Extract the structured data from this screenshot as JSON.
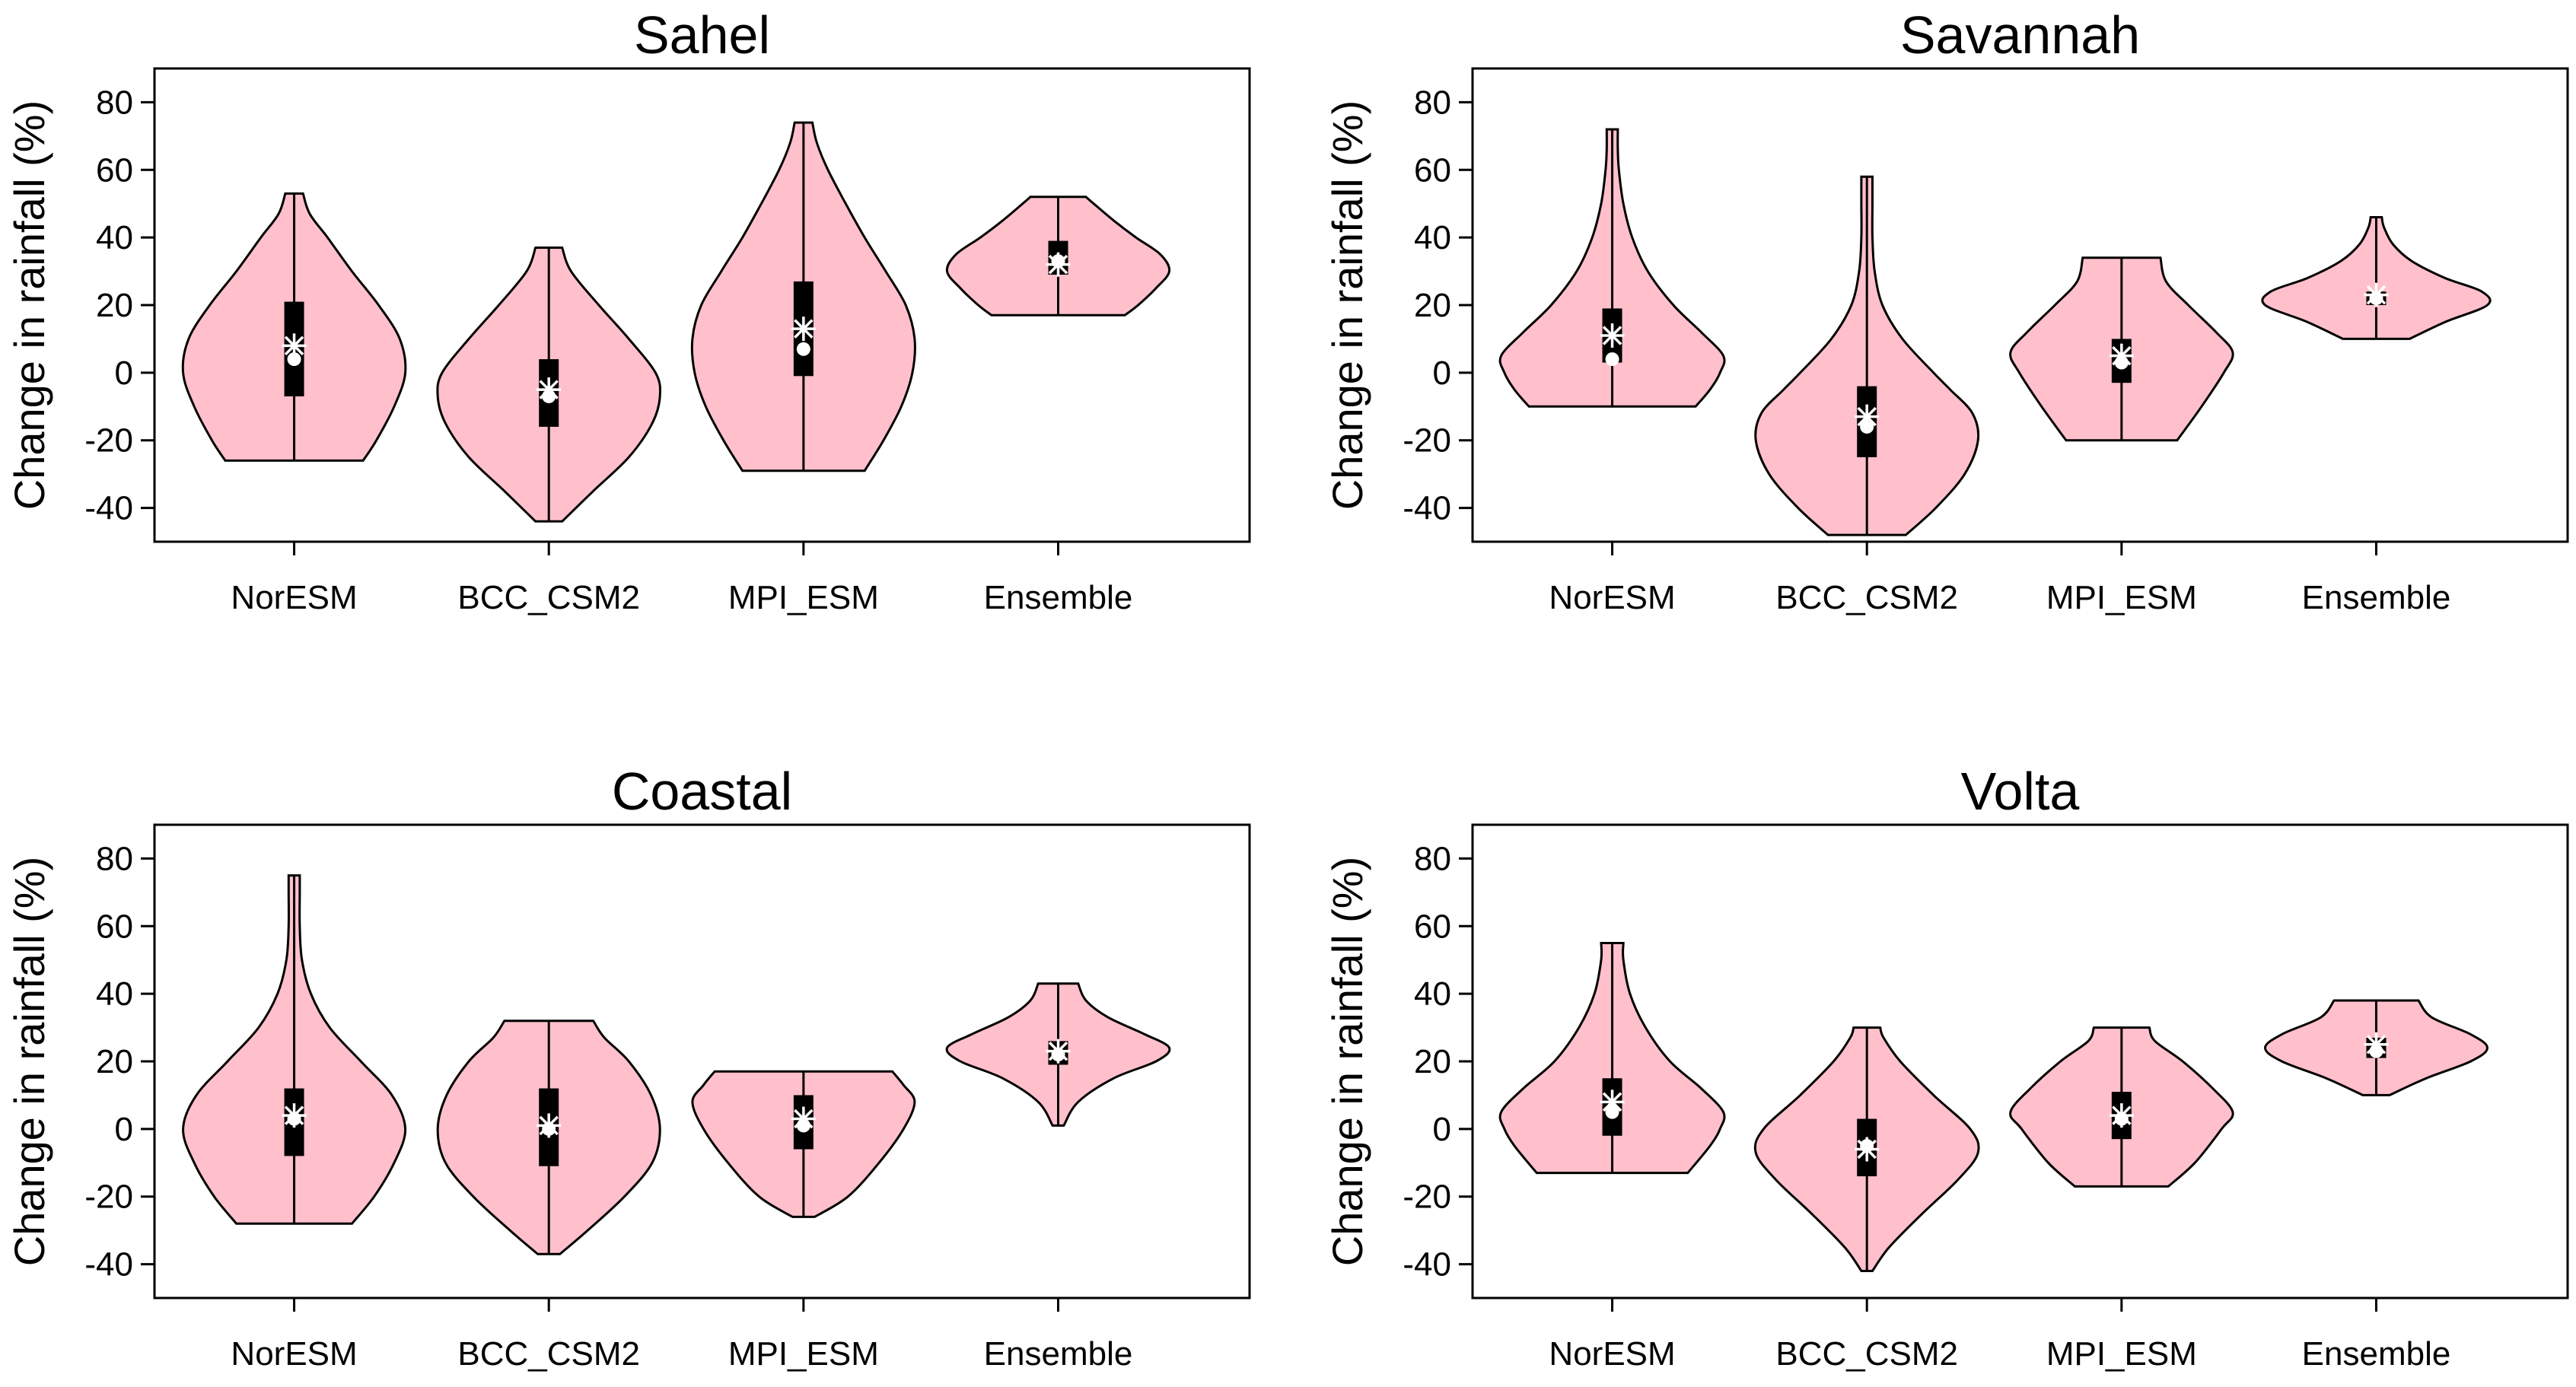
{
  "colors": {
    "violin_fill": "#FFC0CB",
    "outline": "#000000",
    "marker": "#FFFFFF"
  },
  "chart_data": [
    {
      "type": "violin",
      "title": "Sahel",
      "xlabel": "",
      "ylabel": "Change in rainfall (%)",
      "ylim": [
        -50,
        90
      ],
      "yticks": [
        -40,
        -20,
        0,
        20,
        40,
        60,
        80
      ],
      "categories": [
        "NorESM",
        "BCC_CSM2",
        "MPI_ESM",
        "Ensemble"
      ],
      "series": [
        {
          "name": "NorESM",
          "min": -26,
          "q1": -7,
          "median": 4,
          "mean": 8,
          "q3": 21,
          "max": 53,
          "density": [
            [
              -26,
              0.62
            ],
            [
              -20,
              0.74
            ],
            [
              -10,
              0.9
            ],
            [
              0,
              1.0
            ],
            [
              10,
              0.95
            ],
            [
              20,
              0.76
            ],
            [
              30,
              0.52
            ],
            [
              40,
              0.3
            ],
            [
              47,
              0.14
            ],
            [
              53,
              0.08
            ]
          ]
        },
        {
          "name": "BCC_CSM2",
          "min": -44,
          "q1": -16,
          "median": -7,
          "mean": -5,
          "q3": 4,
          "max": 37,
          "density": [
            [
              -44,
              0.12
            ],
            [
              -35,
              0.4
            ],
            [
              -25,
              0.72
            ],
            [
              -15,
              0.93
            ],
            [
              -7,
              1.0
            ],
            [
              0,
              0.96
            ],
            [
              10,
              0.72
            ],
            [
              20,
              0.45
            ],
            [
              30,
              0.2
            ],
            [
              37,
              0.12
            ]
          ]
        },
        {
          "name": "MPI_ESM",
          "min": -29,
          "q1": -1,
          "median": 7,
          "mean": 13,
          "q3": 27,
          "max": 74,
          "density": [
            [
              -29,
              0.55
            ],
            [
              -20,
              0.72
            ],
            [
              -10,
              0.88
            ],
            [
              0,
              0.98
            ],
            [
              10,
              1.0
            ],
            [
              20,
              0.92
            ],
            [
              30,
              0.74
            ],
            [
              40,
              0.55
            ],
            [
              50,
              0.38
            ],
            [
              60,
              0.22
            ],
            [
              68,
              0.12
            ],
            [
              74,
              0.08
            ]
          ]
        },
        {
          "name": "Ensemble",
          "min": 17,
          "q1": 29,
          "median": 33,
          "mean": 32,
          "q3": 39,
          "max": 52,
          "density": [
            [
              17,
              0.6
            ],
            [
              20,
              0.72
            ],
            [
              25,
              0.88
            ],
            [
              30,
              1.0
            ],
            [
              35,
              0.92
            ],
            [
              40,
              0.7
            ],
            [
              45,
              0.5
            ],
            [
              50,
              0.32
            ],
            [
              52,
              0.25
            ]
          ]
        }
      ]
    },
    {
      "type": "violin",
      "title": "Savannah",
      "xlabel": "",
      "ylabel": "Change in rainfall (%)",
      "ylim": [
        -50,
        90
      ],
      "yticks": [
        -40,
        -20,
        0,
        20,
        40,
        60,
        80
      ],
      "categories": [
        "NorESM",
        "BCC_CSM2",
        "MPI_ESM",
        "Ensemble"
      ],
      "series": [
        {
          "name": "NorESM",
          "min": -10,
          "q1": 3,
          "median": 4,
          "mean": 11,
          "q3": 19,
          "max": 72,
          "density": [
            [
              -10,
              0.75
            ],
            [
              -5,
              0.88
            ],
            [
              0,
              0.97
            ],
            [
              5,
              1.0
            ],
            [
              12,
              0.8
            ],
            [
              20,
              0.55
            ],
            [
              30,
              0.32
            ],
            [
              40,
              0.18
            ],
            [
              50,
              0.1
            ],
            [
              60,
              0.06
            ],
            [
              66,
              0.05
            ],
            [
              72,
              0.05
            ]
          ]
        },
        {
          "name": "BCC_CSM2",
          "min": -48,
          "q1": -25,
          "median": -16,
          "mean": -13,
          "q3": -4,
          "max": 58,
          "density": [
            [
              -48,
              0.35
            ],
            [
              -40,
              0.62
            ],
            [
              -30,
              0.88
            ],
            [
              -20,
              1.0
            ],
            [
              -12,
              0.95
            ],
            [
              -5,
              0.75
            ],
            [
              0,
              0.6
            ],
            [
              10,
              0.32
            ],
            [
              20,
              0.14
            ],
            [
              30,
              0.07
            ],
            [
              40,
              0.05
            ],
            [
              50,
              0.05
            ],
            [
              58,
              0.05
            ]
          ]
        },
        {
          "name": "MPI_ESM",
          "min": -20,
          "q1": -3,
          "median": 3,
          "mean": 5,
          "q3": 10,
          "max": 34,
          "density": [
            [
              -20,
              0.5
            ],
            [
              -10,
              0.72
            ],
            [
              0,
              0.92
            ],
            [
              6,
              1.0
            ],
            [
              12,
              0.85
            ],
            [
              20,
              0.6
            ],
            [
              27,
              0.4
            ],
            [
              34,
              0.35
            ]
          ]
        },
        {
          "name": "Ensemble",
          "min": 10,
          "q1": 20,
          "median": 22,
          "mean": 23,
          "q3": 24,
          "max": 46,
          "density": [
            [
              10,
              0.3
            ],
            [
              15,
              0.62
            ],
            [
              20,
              1.0
            ],
            [
              24,
              0.95
            ],
            [
              28,
              0.62
            ],
            [
              33,
              0.32
            ],
            [
              38,
              0.15
            ],
            [
              43,
              0.07
            ],
            [
              46,
              0.05
            ]
          ]
        }
      ]
    },
    {
      "type": "violin",
      "title": "Coastal",
      "xlabel": "",
      "ylabel": "Change in rainfall (%)",
      "ylim": [
        -50,
        90
      ],
      "yticks": [
        -40,
        -20,
        0,
        20,
        40,
        60,
        80
      ],
      "categories": [
        "NorESM",
        "BCC_CSM2",
        "MPI_ESM",
        "Ensemble"
      ],
      "series": [
        {
          "name": "NorESM",
          "min": -28,
          "q1": -8,
          "median": 3,
          "mean": 4,
          "q3": 12,
          "max": 75,
          "density": [
            [
              -28,
              0.52
            ],
            [
              -20,
              0.72
            ],
            [
              -10,
              0.9
            ],
            [
              0,
              1.0
            ],
            [
              10,
              0.88
            ],
            [
              20,
              0.6
            ],
            [
              30,
              0.32
            ],
            [
              40,
              0.15
            ],
            [
              50,
              0.07
            ],
            [
              60,
              0.05
            ],
            [
              70,
              0.05
            ],
            [
              75,
              0.05
            ]
          ]
        },
        {
          "name": "BCC_CSM2",
          "min": -37,
          "q1": -11,
          "median": 0,
          "mean": 1,
          "q3": 12,
          "max": 32,
          "density": [
            [
              -37,
              0.1
            ],
            [
              -30,
              0.35
            ],
            [
              -20,
              0.68
            ],
            [
              -10,
              0.93
            ],
            [
              0,
              1.0
            ],
            [
              10,
              0.92
            ],
            [
              20,
              0.72
            ],
            [
              27,
              0.5
            ],
            [
              32,
              0.4
            ]
          ]
        },
        {
          "name": "MPI_ESM",
          "min": -26,
          "q1": -6,
          "median": 1,
          "mean": 3,
          "q3": 10,
          "max": 17,
          "density": [
            [
              -26,
              0.1
            ],
            [
              -20,
              0.4
            ],
            [
              -10,
              0.68
            ],
            [
              0,
              0.9
            ],
            [
              8,
              1.0
            ],
            [
              13,
              0.9
            ],
            [
              17,
              0.8
            ]
          ]
        },
        {
          "name": "Ensemble",
          "min": 1,
          "q1": 19,
          "median": 22,
          "mean": 23,
          "q3": 26,
          "max": 43,
          "density": [
            [
              1,
              0.05
            ],
            [
              8,
              0.18
            ],
            [
              15,
              0.5
            ],
            [
              20,
              0.88
            ],
            [
              24,
              1.0
            ],
            [
              28,
              0.78
            ],
            [
              33,
              0.45
            ],
            [
              38,
              0.25
            ],
            [
              43,
              0.18
            ]
          ]
        }
      ]
    },
    {
      "type": "violin",
      "title": "Volta",
      "xlabel": "",
      "ylabel": "Change in rainfall (%)",
      "ylim": [
        -50,
        90
      ],
      "yticks": [
        -40,
        -20,
        0,
        20,
        40,
        60,
        80
      ],
      "categories": [
        "NorESM",
        "BCC_CSM2",
        "MPI_ESM",
        "Ensemble"
      ],
      "series": [
        {
          "name": "NorESM",
          "min": -13,
          "q1": -2,
          "median": 5,
          "mean": 8,
          "q3": 15,
          "max": 55,
          "density": [
            [
              -13,
              0.68
            ],
            [
              -5,
              0.88
            ],
            [
              0,
              0.97
            ],
            [
              5,
              1.0
            ],
            [
              12,
              0.8
            ],
            [
              20,
              0.52
            ],
            [
              30,
              0.3
            ],
            [
              40,
              0.16
            ],
            [
              50,
              0.1
            ],
            [
              55,
              0.1
            ]
          ]
        },
        {
          "name": "BCC_CSM2",
          "min": -42,
          "q1": -14,
          "median": -5,
          "mean": -6,
          "q3": 3,
          "max": 30,
          "density": [
            [
              -42,
              0.05
            ],
            [
              -35,
              0.2
            ],
            [
              -25,
              0.5
            ],
            [
              -15,
              0.82
            ],
            [
              -7,
              1.0
            ],
            [
              0,
              0.93
            ],
            [
              10,
              0.6
            ],
            [
              20,
              0.3
            ],
            [
              27,
              0.15
            ],
            [
              30,
              0.12
            ]
          ]
        },
        {
          "name": "MPI_ESM",
          "min": -17,
          "q1": -3,
          "median": 3,
          "mean": 4,
          "q3": 11,
          "max": 30,
          "density": [
            [
              -17,
              0.42
            ],
            [
              -10,
              0.66
            ],
            [
              0,
              0.9
            ],
            [
              5,
              1.0
            ],
            [
              12,
              0.82
            ],
            [
              20,
              0.55
            ],
            [
              26,
              0.3
            ],
            [
              30,
              0.25
            ]
          ]
        },
        {
          "name": "Ensemble",
          "min": 10,
          "q1": 21,
          "median": 23,
          "mean": 25,
          "q3": 27,
          "max": 38,
          "density": [
            [
              10,
              0.12
            ],
            [
              15,
              0.45
            ],
            [
              20,
              0.85
            ],
            [
              24,
              1.0
            ],
            [
              28,
              0.85
            ],
            [
              33,
              0.5
            ],
            [
              38,
              0.38
            ]
          ]
        }
      ]
    }
  ]
}
